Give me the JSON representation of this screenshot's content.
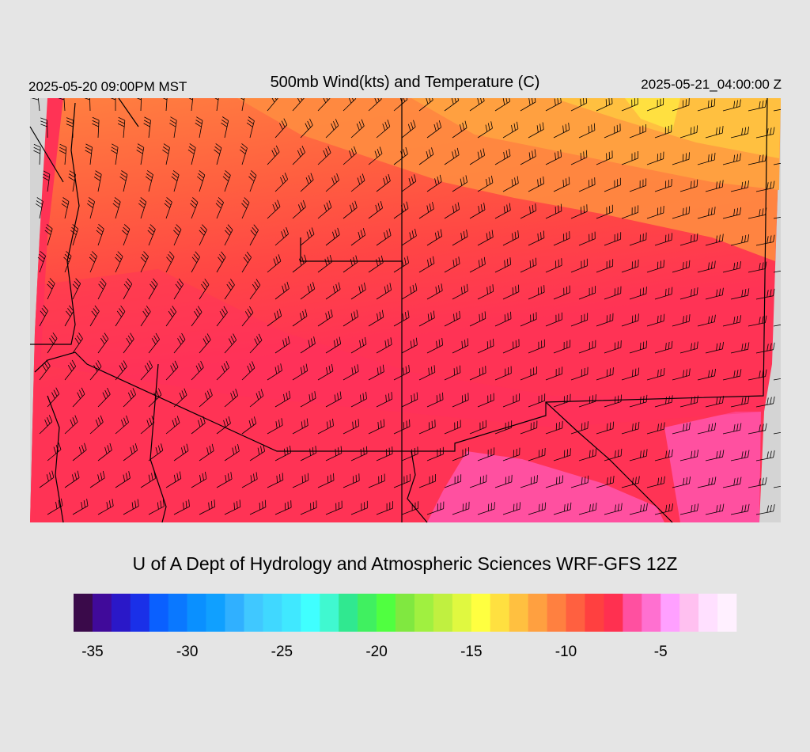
{
  "header": {
    "left": "2025-05-20 09:00PM MST",
    "title": "500mb Wind(kts) and Temperature (C)",
    "right": "2025-05-21_04:00:00 Z"
  },
  "footer": "U of A Dept of Hydrology and Atmospheric Sciences WRF-GFS 12Z",
  "colorbar": {
    "range": [
      -36,
      -1
    ],
    "ticks": [
      -35,
      -30,
      -25,
      -20,
      -15,
      -10,
      -5
    ],
    "colors": [
      "#3a0a4a",
      "#400a9a",
      "#2a18c8",
      "#1a30e8",
      "#0a60ff",
      "#0a78ff",
      "#0a90ff",
      "#10a0ff",
      "#30b0ff",
      "#40c8ff",
      "#40d8ff",
      "#40e8ff",
      "#40ffff",
      "#40f8d0",
      "#30e890",
      "#40f060",
      "#50ff40",
      "#80e840",
      "#a0f040",
      "#c0f040",
      "#e0f840",
      "#ffff40",
      "#ffe040",
      "#ffc040",
      "#ffa040",
      "#ff8040",
      "#ff6040",
      "#ff4040",
      "#ff3050",
      "#ff50a0",
      "#ff70d0",
      "#ffa0ff",
      "#ffc0f0",
      "#ffe0ff",
      "#fff0ff"
    ]
  }
}
